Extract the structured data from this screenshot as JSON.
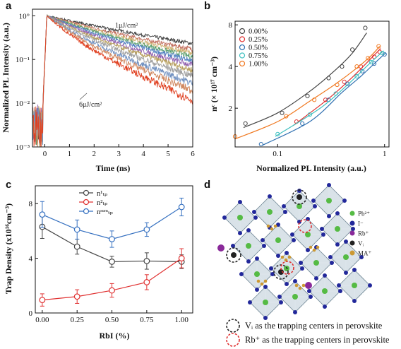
{
  "panel_letters": [
    "a",
    "b",
    "c",
    "d"
  ],
  "chart_data": [
    {
      "id": "a",
      "type": "line",
      "xlabel": "Time (ns)",
      "ylabel": "Normalized PL Intensity (a.u.)",
      "xlim": [
        -0.5,
        6
      ],
      "ylim_log10": [
        -3,
        0.15
      ],
      "y_scale": "log",
      "x_ticks": [
        "0",
        "1",
        "2",
        "3",
        "4",
        "5",
        "6"
      ],
      "y_ticks": [
        "10°",
        "10⁻¹",
        "10⁻²",
        "10⁻³"
      ],
      "annotations": [
        "1μJ/cm²",
        "6μJ/cm²"
      ],
      "series": [
        {
          "color": "#3a3a3a",
          "tau_ns": 2.5
        },
        {
          "color": "#c06a5a",
          "tau_ns": 2.0
        },
        {
          "color": "#d0b070",
          "tau_ns": 1.75
        },
        {
          "color": "#5aa070",
          "tau_ns": 1.55
        },
        {
          "color": "#5080c0",
          "tau_ns": 1.38
        },
        {
          "color": "#9060b0",
          "tau_ns": 1.22
        },
        {
          "color": "#b8a060",
          "tau_ns": 1.08
        },
        {
          "color": "#a0a0a0",
          "tau_ns": 0.95
        },
        {
          "color": "#7090c0",
          "tau_ns": 0.82
        },
        {
          "color": "#d08860",
          "tau_ns": 0.72
        },
        {
          "color": "#e04020",
          "tau_ns": 0.62
        }
      ]
    },
    {
      "id": "b",
      "type": "scatter",
      "xlabel": "Normalized PL Intensity (a.u.)",
      "ylabel": "nᶜ (× 10¹⁷ cm⁻³)",
      "x_scale": "log",
      "y_scale": "log",
      "xlim": [
        0.04,
        1.1
      ],
      "ylim": [
        1.05,
        8.5
      ],
      "x_ticks": [
        {
          "v": 0.1,
          "label": "0.1"
        },
        {
          "v": 1,
          "label": "1"
        }
      ],
      "y_ticks": [
        {
          "v": 2,
          "label": "2"
        },
        {
          "v": 4,
          "label": "4"
        },
        {
          "v": 8,
          "label": "8"
        }
      ],
      "legend_position": "top-left",
      "series": [
        {
          "name": "0.00%",
          "color": "#444444",
          "points": [
            [
              0.05,
              1.55
            ],
            [
              0.11,
              1.85
            ],
            [
              0.19,
              2.45
            ],
            [
              0.3,
              3.3
            ],
            [
              0.4,
              4.0
            ],
            [
              0.5,
              5.3
            ],
            [
              0.66,
              7.6
            ]
          ],
          "fit": [
            [
              0.048,
              1.45
            ],
            [
              0.1,
              1.85
            ],
            [
              0.2,
              2.65
            ],
            [
              0.35,
              3.8
            ],
            [
              0.5,
              5.0
            ],
            [
              0.68,
              7.0
            ]
          ]
        },
        {
          "name": "0.25%",
          "color": "#e03030",
          "points": [
            [
              0.15,
              1.6
            ],
            [
              0.28,
              2.3
            ],
            [
              0.42,
              3.1
            ],
            [
              0.6,
              4.0
            ],
            [
              0.8,
              4.7
            ],
            [
              0.9,
              5.1
            ]
          ],
          "fit": [
            [
              0.14,
              1.5
            ],
            [
              0.3,
              2.35
            ],
            [
              0.5,
              3.35
            ],
            [
              0.7,
              4.35
            ],
            [
              0.92,
              5.4
            ]
          ]
        },
        {
          "name": "0.50%",
          "color": "#2e6fb0",
          "points": [
            [
              0.07,
              1.1
            ],
            [
              0.17,
              1.55
            ],
            [
              0.3,
              2.3
            ],
            [
              0.45,
              3.0
            ],
            [
              0.62,
              3.7
            ],
            [
              0.8,
              4.2
            ],
            [
              1.0,
              4.9
            ]
          ],
          "fit": [
            [
              0.072,
              1.08
            ],
            [
              0.2,
              1.6
            ],
            [
              0.4,
              2.6
            ],
            [
              0.6,
              3.4
            ],
            [
              0.8,
              4.2
            ],
            [
              1.02,
              5.0
            ]
          ]
        },
        {
          "name": "0.75%",
          "color": "#40c0c0",
          "points": [
            [
              0.1,
              1.3
            ],
            [
              0.2,
              1.8
            ],
            [
              0.35,
              2.55
            ],
            [
              0.55,
              3.4
            ],
            [
              0.75,
              4.3
            ],
            [
              0.95,
              5.0
            ]
          ],
          "fit": [
            [
              0.095,
              1.25
            ],
            [
              0.25,
              2.0
            ],
            [
              0.45,
              2.95
            ],
            [
              0.7,
              4.1
            ],
            [
              0.98,
              5.2
            ]
          ]
        },
        {
          "name": "1.00%",
          "color": "#f07820",
          "points": [
            [
              0.04,
              1.25
            ],
            [
              0.12,
              1.75
            ],
            [
              0.22,
              2.3
            ],
            [
              0.36,
              2.95
            ],
            [
              0.55,
              4.0
            ],
            [
              0.7,
              4.6
            ],
            [
              0.88,
              5.6
            ]
          ],
          "fit": [
            [
              0.04,
              1.2
            ],
            [
              0.1,
              1.6
            ],
            [
              0.2,
              2.25
            ],
            [
              0.35,
              3.0
            ],
            [
              0.55,
              3.9
            ],
            [
              0.75,
              4.8
            ],
            [
              0.9,
              5.6
            ]
          ]
        }
      ]
    },
    {
      "id": "c",
      "type": "line",
      "xlabel": "RbI (%)",
      "ylabel": "Trap Density (x10¹⁶cm⁻³)",
      "xlim": [
        -0.05,
        1.08
      ],
      "ylim": [
        0,
        9.3
      ],
      "x_ticks": [
        "0.00",
        "0.25",
        "0.50",
        "0.75",
        "1.00"
      ],
      "y_ticks": [
        {
          "v": 0,
          "label": "0"
        },
        {
          "v": 4,
          "label": "4"
        },
        {
          "v": 8,
          "label": "8"
        }
      ],
      "legend_position": "top-center",
      "categories": [
        0.0,
        0.25,
        0.5,
        0.75,
        1.0
      ],
      "series": [
        {
          "name": "n¹ₜₚ",
          "color": "#444444",
          "values": [
            6.3,
            4.85,
            3.75,
            3.8,
            3.75
          ],
          "errors": [
            0.85,
            0.55,
            0.4,
            0.6,
            0.5
          ]
        },
        {
          "name": "n²ₜₚ",
          "color": "#e03030",
          "values": [
            0.95,
            1.2,
            1.65,
            2.25,
            4.0
          ],
          "errors": [
            0.45,
            0.5,
            0.5,
            0.55,
            0.7
          ]
        },
        {
          "name": "nˢᵘᵐₜₚ",
          "color": "#3570c0",
          "values": [
            7.2,
            6.1,
            5.4,
            6.1,
            7.75
          ],
          "errors": [
            0.95,
            0.7,
            0.6,
            0.5,
            0.65
          ]
        }
      ]
    }
  ],
  "structure": {
    "legend": [
      {
        "label": "Pb²⁺",
        "color": "#55bb44"
      },
      {
        "label": "I⁻",
        "color": "#22289a"
      },
      {
        "label": "Rb⁺",
        "color": "#8a2a9a"
      },
      {
        "label": "Vᵢ",
        "color": "#222222"
      },
      {
        "label": "MA⁺",
        "color": "#cc9933"
      }
    ],
    "captions": [
      {
        "text": "Vᵢ as the trapping centers in perovskite",
        "color": "#222222"
      },
      {
        "text": "Rb⁺ as the trapping centers in perovskite",
        "color": "#e03030"
      }
    ]
  }
}
